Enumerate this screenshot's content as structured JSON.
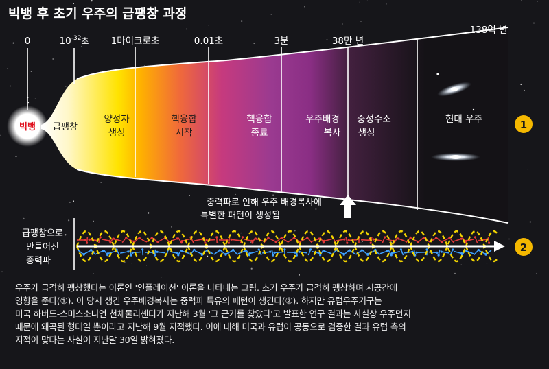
{
  "title": "빅뱅 후 초기 우주의 급팽창 과정",
  "timeline": {
    "ticks": [
      {
        "label": "0"
      },
      {
        "label": "10",
        "sup": "-32",
        "suffix": "초"
      },
      {
        "label": "1마이크로초"
      },
      {
        "label": "0.01초"
      },
      {
        "label": "3분"
      },
      {
        "label": "38만 년"
      },
      {
        "label": "138억 년"
      }
    ]
  },
  "stages": {
    "big_bang": "빅뱅",
    "inflation": "급팽창",
    "proton_line1": "양성자",
    "proton_line2": "생성",
    "fusion_start_line1": "핵융합",
    "fusion_start_line2": "시작",
    "fusion_end_line1": "핵융합",
    "fusion_end_line2": "종료",
    "cmb_line1": "우주배경",
    "cmb_line2": "복사",
    "neutral_h_line1": "중성수소",
    "neutral_h_line2": "생성",
    "modern": "현대 우주"
  },
  "annotation": {
    "line1": "중력파로 인해 우주 배경복사에",
    "line2": "특별한 패턴이 생성됨"
  },
  "wave_label": {
    "line1": "급팽창으로",
    "line2": "만들어진",
    "line3": "중력파"
  },
  "markers": {
    "m1": "1",
    "m2": "2"
  },
  "caption": {
    "line1": "우주가 급격히 팽창했다는 이론인 '인플레이션' 이론을 나타내는 그림. 초기 우주가 급격히 팽창하며 시공간에",
    "line2": "영향을 준다(①). 이 당시 생긴 우주배경복사는 중력파 특유의 패턴이 생긴다(②). 하지만 유럽우주기구는",
    "line3": "미국 하버드-스미스소니언 천체물리센터가 지난해 3월 '그 근거를 찾았다'고 발표한 연구 결과는 사실상 우주먼지",
    "line4": "때문에 왜곡된 형태일 뿐이라고 지난해 9월 지적했다. 이에 대해 미국과 유럽이 공동으로 검증한 결과 유럽 측의",
    "line5": "지적이 맞다는 사실이 지난달 30일 밝혀졌다."
  },
  "colors": {
    "background": "#16161a",
    "marker_fill": "#f5b800",
    "big_bang_text": "#e0101e",
    "wave_yellow": "#f2d400",
    "arrow_red": "#e23a3a",
    "arrow_blue": "#3ea0ff"
  }
}
